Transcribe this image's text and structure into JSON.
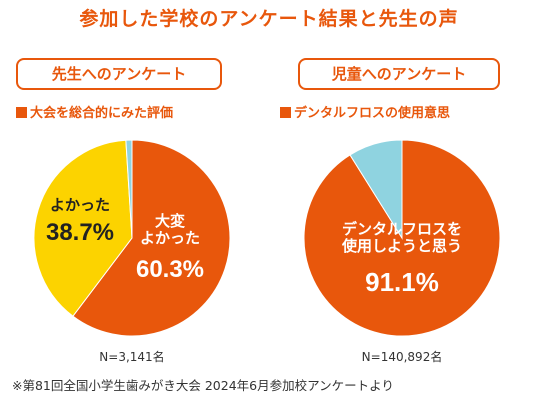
{
  "title": "参加した学校のアンケート結果と先生の声",
  "colors": {
    "accent": "#e8570c",
    "yellow": "#fcd300",
    "light_blue": "#8fd3e0",
    "dark_text": "#222222"
  },
  "chart_data": [
    {
      "type": "pie",
      "panel_label": "先生へのアンケート",
      "title": "大会を総合的にみた評価",
      "n_label": "N=3,141名",
      "slices": [
        {
          "label_lines": [
            "大変",
            "よかった"
          ],
          "value": 60.3,
          "value_text": "60.3%",
          "color": "#e8570c"
        },
        {
          "label_lines": [
            "よかった"
          ],
          "value": 38.7,
          "value_text": "38.7%",
          "color": "#fcd300"
        },
        {
          "label_lines": [],
          "value": 1.0,
          "value_text": "",
          "color": "#8fd3e0"
        }
      ]
    },
    {
      "type": "pie",
      "panel_label": "児童へのアンケート",
      "title": "デンタルフロスの使用意思",
      "n_label": "N=140,892名",
      "slices": [
        {
          "label_lines": [
            "デンタルフロスを",
            "使用しようと思う"
          ],
          "value": 91.1,
          "value_text": "91.1%",
          "color": "#e8570c"
        },
        {
          "label_lines": [],
          "value": 8.9,
          "value_text": "",
          "color": "#8fd3e0"
        }
      ]
    }
  ],
  "footnote": "※第81回全国小学生歯みがき大会 2024年6月参加校アンケートより"
}
